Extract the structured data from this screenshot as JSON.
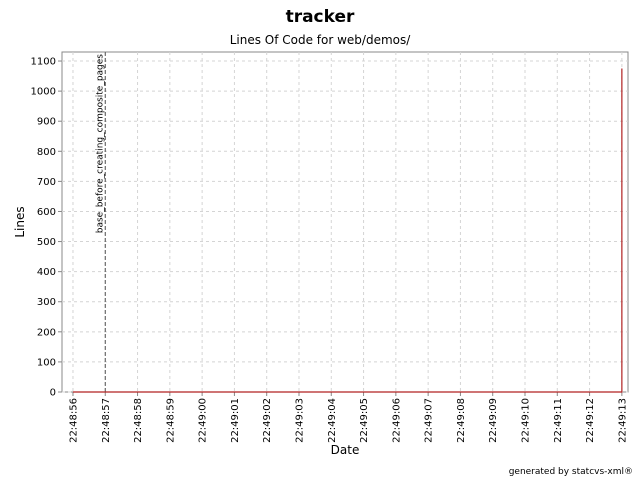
{
  "chart_data": {
    "type": "line",
    "title": "tracker",
    "subtitle": "Lines Of Code for web/demos/",
    "x_label": "Date",
    "y_label": "Lines",
    "footer": "generated by statcvs-xml®",
    "x": [
      "22:48:56",
      "22:49:13",
      "22:49:13"
    ],
    "series": [
      {
        "name": "Lines",
        "color": "#b22222",
        "values": [
          0,
          0,
          1075
        ]
      }
    ],
    "xlim": [
      "22:48:55.66",
      "22:49:13.19"
    ],
    "xticks": [
      "22:48:56",
      "22:48:57",
      "22:48:58",
      "22:48:59",
      "22:49:00",
      "22:49:01",
      "22:49:02",
      "22:49:03",
      "22:49:04",
      "22:49:05",
      "22:49:06",
      "22:49:07",
      "22:49:08",
      "22:49:09",
      "22:49:10",
      "22:49:11",
      "22:49:12",
      "22:49:13"
    ],
    "ylim": [
      0,
      1130
    ],
    "yticks": [
      0,
      100,
      200,
      300,
      400,
      500,
      600,
      700,
      800,
      900,
      1000,
      1100
    ],
    "grid": true,
    "annotations": [
      {
        "x": "22:48:57",
        "label": "base_before_creating_composite_pages"
      }
    ]
  }
}
